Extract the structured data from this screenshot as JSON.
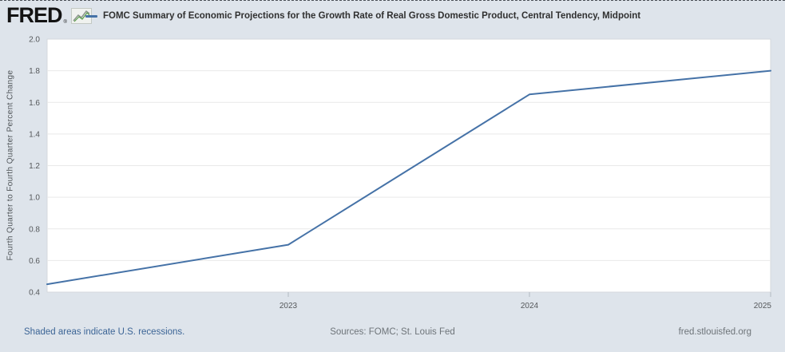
{
  "header": {
    "logo_text": "FRED",
    "logo_reg_mark": "®",
    "legend_label": "FOMC Summary of Economic Projections for the Growth Rate of Real Gross Domestic Product, Central Tendency, Midpoint"
  },
  "footer": {
    "recession_note": "Shaded areas indicate U.S. recessions.",
    "sources": "Sources: FOMC; St. Louis Fed",
    "site_link": "fred.stlouisfed.org"
  },
  "colors": {
    "background": "#dee4eb",
    "line": "#4572a7",
    "plot_background": "#ffffff",
    "gridline": "#e9e9e9",
    "plot_border": "#d4d9de",
    "tick_text": "#55585b",
    "link_blue": "#3c6596",
    "muted_text": "#6e7479"
  },
  "chart_data": {
    "type": "line",
    "title": "FOMC Summary of Economic Projections for the Growth Rate of Real Gross Domestic Product, Central Tendency, Midpoint",
    "x": [
      2022,
      2023,
      2024,
      2025
    ],
    "values": [
      0.45,
      0.7,
      1.65,
      1.8
    ],
    "xlabel": "",
    "ylabel": "Fourth Quarter to Fourth Quarter Percent Change",
    "ylim": [
      0.4,
      2.0
    ],
    "ytick_step": 0.2,
    "ytick_labels": [
      "0.4",
      "0.6",
      "0.8",
      "1.0",
      "1.2",
      "1.4",
      "1.6",
      "1.8",
      "2.0"
    ],
    "xtick_labels": [
      "2023",
      "2024",
      "2025"
    ],
    "xticks": [
      2023,
      2024,
      2025
    ],
    "grid": "horizontal",
    "legend_position": "top"
  }
}
